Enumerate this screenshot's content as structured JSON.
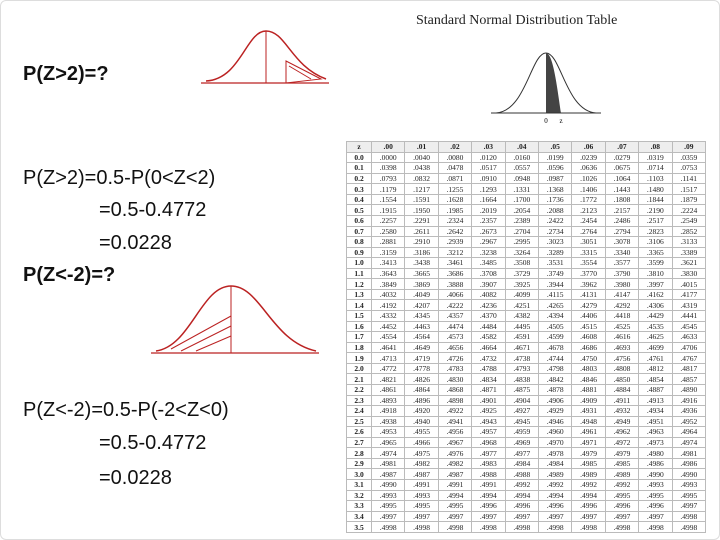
{
  "slide": {
    "heading_1": "P(Z>2)=?",
    "solution_1": [
      "P(Z>2)=0.5-P(0<Z<2)",
      "=0.5-0.4772",
      "=0.0228"
    ],
    "heading_2": "P(Z<-2)=?",
    "solution_2": [
      "P(Z<-2)=0.5-P(-2<Z<0)",
      "=0.5-0.4772",
      "=0.0228"
    ]
  },
  "table": {
    "title": "Standard Normal Distribution Table",
    "figure_labels": [
      "0",
      "z"
    ],
    "header": [
      "z",
      ".00",
      ".01",
      ".02",
      ".03",
      ".04",
      ".05",
      ".06",
      ".07",
      ".08",
      ".09"
    ],
    "rows": [
      [
        "0.0",
        ".0000",
        ".0040",
        ".0080",
        ".0120",
        ".0160",
        ".0199",
        ".0239",
        ".0279",
        ".0319",
        ".0359"
      ],
      [
        "0.1",
        ".0398",
        ".0438",
        ".0478",
        ".0517",
        ".0557",
        ".0596",
        ".0636",
        ".0675",
        ".0714",
        ".0753"
      ],
      [
        "0.2",
        ".0793",
        ".0832",
        ".0871",
        ".0910",
        ".0948",
        ".0987",
        ".1026",
        ".1064",
        ".1103",
        ".1141"
      ],
      [
        "0.3",
        ".1179",
        ".1217",
        ".1255",
        ".1293",
        ".1331",
        ".1368",
        ".1406",
        ".1443",
        ".1480",
        ".1517"
      ],
      [
        "0.4",
        ".1554",
        ".1591",
        ".1628",
        ".1664",
        ".1700",
        ".1736",
        ".1772",
        ".1808",
        ".1844",
        ".1879"
      ],
      [
        "0.5",
        ".1915",
        ".1950",
        ".1985",
        ".2019",
        ".2054",
        ".2088",
        ".2123",
        ".2157",
        ".2190",
        ".2224"
      ],
      [
        "0.6",
        ".2257",
        ".2291",
        ".2324",
        ".2357",
        ".2389",
        ".2422",
        ".2454",
        ".2486",
        ".2517",
        ".2549"
      ],
      [
        "0.7",
        ".2580",
        ".2611",
        ".2642",
        ".2673",
        ".2704",
        ".2734",
        ".2764",
        ".2794",
        ".2823",
        ".2852"
      ],
      [
        "0.8",
        ".2881",
        ".2910",
        ".2939",
        ".2967",
        ".2995",
        ".3023",
        ".3051",
        ".3078",
        ".3106",
        ".3133"
      ],
      [
        "0.9",
        ".3159",
        ".3186",
        ".3212",
        ".3238",
        ".3264",
        ".3289",
        ".3315",
        ".3340",
        ".3365",
        ".3389"
      ],
      [
        "1.0",
        ".3413",
        ".3438",
        ".3461",
        ".3485",
        ".3508",
        ".3531",
        ".3554",
        ".3577",
        ".3599",
        ".3621"
      ],
      [
        "1.1",
        ".3643",
        ".3665",
        ".3686",
        ".3708",
        ".3729",
        ".3749",
        ".3770",
        ".3790",
        ".3810",
        ".3830"
      ],
      [
        "1.2",
        ".3849",
        ".3869",
        ".3888",
        ".3907",
        ".3925",
        ".3944",
        ".3962",
        ".3980",
        ".3997",
        ".4015"
      ],
      [
        "1.3",
        ".4032",
        ".4049",
        ".4066",
        ".4082",
        ".4099",
        ".4115",
        ".4131",
        ".4147",
        ".4162",
        ".4177"
      ],
      [
        "1.4",
        ".4192",
        ".4207",
        ".4222",
        ".4236",
        ".4251",
        ".4265",
        ".4279",
        ".4292",
        ".4306",
        ".4319"
      ],
      [
        "1.5",
        ".4332",
        ".4345",
        ".4357",
        ".4370",
        ".4382",
        ".4394",
        ".4406",
        ".4418",
        ".4429",
        ".4441"
      ],
      [
        "1.6",
        ".4452",
        ".4463",
        ".4474",
        ".4484",
        ".4495",
        ".4505",
        ".4515",
        ".4525",
        ".4535",
        ".4545"
      ],
      [
        "1.7",
        ".4554",
        ".4564",
        ".4573",
        ".4582",
        ".4591",
        ".4599",
        ".4608",
        ".4616",
        ".4625",
        ".4633"
      ],
      [
        "1.8",
        ".4641",
        ".4649",
        ".4656",
        ".4664",
        ".4671",
        ".4678",
        ".4686",
        ".4693",
        ".4699",
        ".4706"
      ],
      [
        "1.9",
        ".4713",
        ".4719",
        ".4726",
        ".4732",
        ".4738",
        ".4744",
        ".4750",
        ".4756",
        ".4761",
        ".4767"
      ],
      [
        "2.0",
        ".4772",
        ".4778",
        ".4783",
        ".4788",
        ".4793",
        ".4798",
        ".4803",
        ".4808",
        ".4812",
        ".4817"
      ],
      [
        "2.1",
        ".4821",
        ".4826",
        ".4830",
        ".4834",
        ".4838",
        ".4842",
        ".4846",
        ".4850",
        ".4854",
        ".4857"
      ],
      [
        "2.2",
        ".4861",
        ".4864",
        ".4868",
        ".4871",
        ".4875",
        ".4878",
        ".4881",
        ".4884",
        ".4887",
        ".4890"
      ],
      [
        "2.3",
        ".4893",
        ".4896",
        ".4898",
        ".4901",
        ".4904",
        ".4906",
        ".4909",
        ".4911",
        ".4913",
        ".4916"
      ],
      [
        "2.4",
        ".4918",
        ".4920",
        ".4922",
        ".4925",
        ".4927",
        ".4929",
        ".4931",
        ".4932",
        ".4934",
        ".4936"
      ],
      [
        "2.5",
        ".4938",
        ".4940",
        ".4941",
        ".4943",
        ".4945",
        ".4946",
        ".4948",
        ".4949",
        ".4951",
        ".4952"
      ],
      [
        "2.6",
        ".4953",
        ".4955",
        ".4956",
        ".4957",
        ".4959",
        ".4960",
        ".4961",
        ".4962",
        ".4963",
        ".4964"
      ],
      [
        "2.7",
        ".4965",
        ".4966",
        ".4967",
        ".4968",
        ".4969",
        ".4970",
        ".4971",
        ".4972",
        ".4973",
        ".4974"
      ],
      [
        "2.8",
        ".4974",
        ".4975",
        ".4976",
        ".4977",
        ".4977",
        ".4978",
        ".4979",
        ".4979",
        ".4980",
        ".4981"
      ],
      [
        "2.9",
        ".4981",
        ".4982",
        ".4982",
        ".4983",
        ".4984",
        ".4984",
        ".4985",
        ".4985",
        ".4986",
        ".4986"
      ],
      [
        "3.0",
        ".4987",
        ".4987",
        ".4987",
        ".4988",
        ".4988",
        ".4989",
        ".4989",
        ".4989",
        ".4990",
        ".4990"
      ],
      [
        "3.1",
        ".4990",
        ".4991",
        ".4991",
        ".4991",
        ".4992",
        ".4992",
        ".4992",
        ".4992",
        ".4993",
        ".4993"
      ],
      [
        "3.2",
        ".4993",
        ".4993",
        ".4994",
        ".4994",
        ".4994",
        ".4994",
        ".4994",
        ".4995",
        ".4995",
        ".4995"
      ],
      [
        "3.3",
        ".4995",
        ".4995",
        ".4995",
        ".4996",
        ".4996",
        ".4996",
        ".4996",
        ".4996",
        ".4996",
        ".4997"
      ],
      [
        "3.4",
        ".4997",
        ".4997",
        ".4997",
        ".4997",
        ".4997",
        ".4997",
        ".4997",
        ".4997",
        ".4997",
        ".4998"
      ],
      [
        "3.5",
        ".4998",
        ".4998",
        ".4998",
        ".4998",
        ".4998",
        ".4998",
        ".4998",
        ".4998",
        ".4998",
        ".4998"
      ]
    ]
  }
}
